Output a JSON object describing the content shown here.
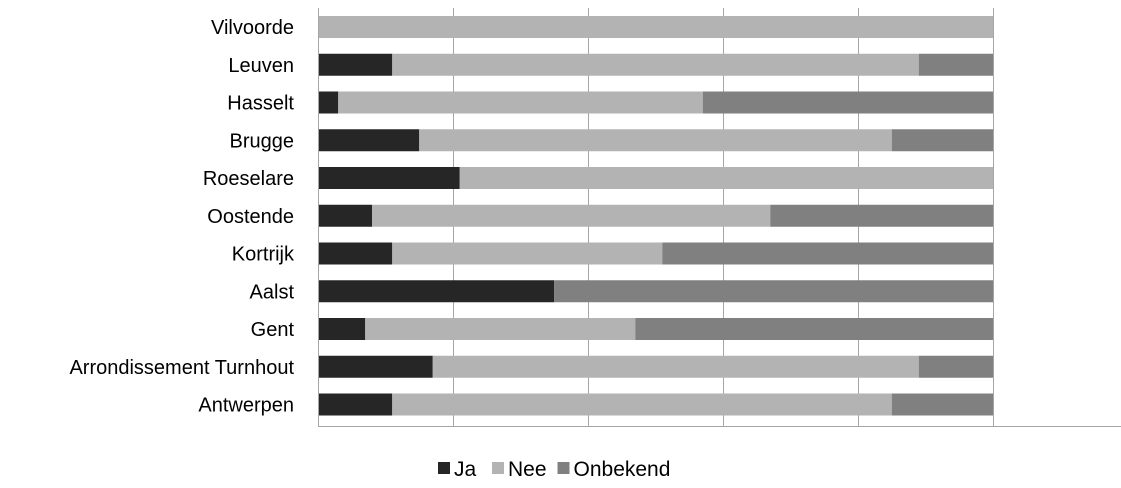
{
  "chart_data": {
    "type": "bar",
    "orientation": "horizontal",
    "stacked": "percent",
    "categories": [
      "Vilvoorde",
      "Leuven",
      "Hasselt",
      "Brugge",
      "Roeselare",
      "Oostende",
      "Kortrijk",
      "Aalst",
      "Gent",
      "Arrondissement Turnhout",
      "Antwerpen"
    ],
    "series": [
      {
        "name": "Ja",
        "color": "#262626",
        "values": [
          0,
          11,
          3,
          15,
          21,
          8,
          11,
          35,
          7,
          17,
          11
        ]
      },
      {
        "name": "Nee",
        "color": "#b3b3b3",
        "values": [
          100,
          78,
          54,
          70,
          79,
          59,
          40,
          0,
          40,
          72,
          74
        ]
      },
      {
        "name": "Onbekend",
        "color": "#808080",
        "values": [
          0,
          11,
          43,
          15,
          0,
          33,
          49,
          65,
          53,
          11,
          15
        ]
      }
    ],
    "xlim": [
      0,
      100
    ],
    "grid": true,
    "legend": "bottom",
    "title": "",
    "xlabel": "",
    "ylabel": ""
  }
}
